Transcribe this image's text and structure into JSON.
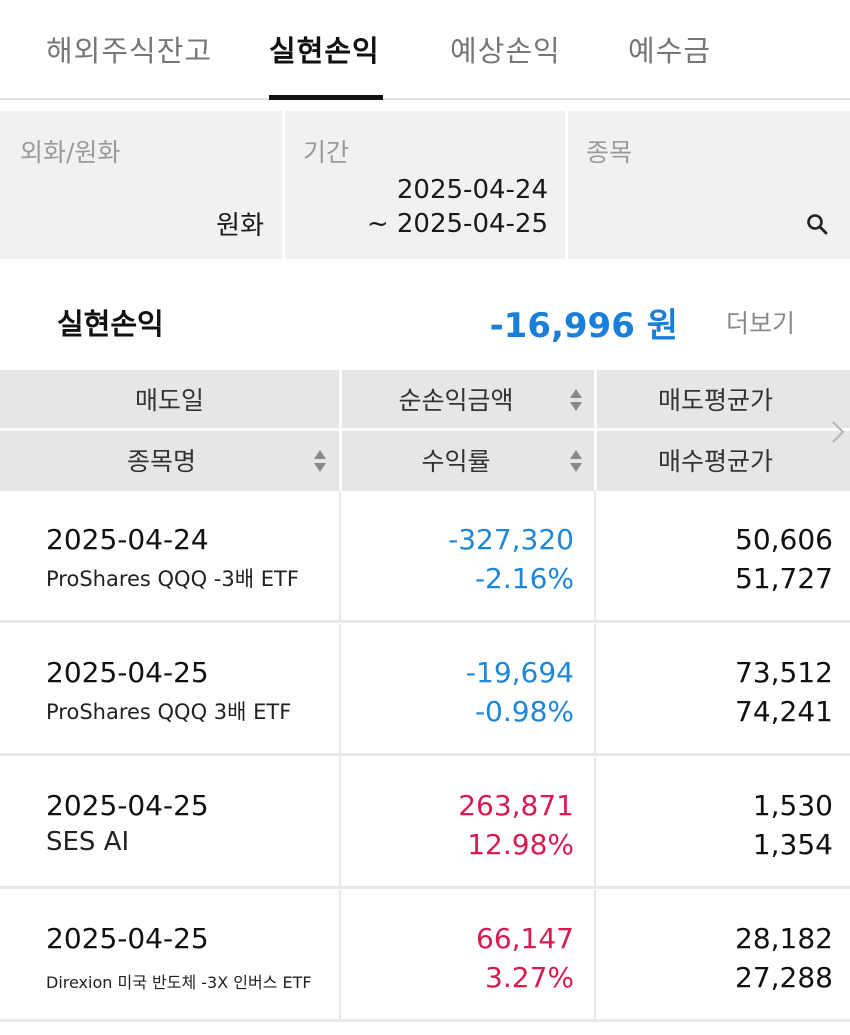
{
  "tabs": [
    {
      "label": "해외주식잔고",
      "active": false
    },
    {
      "label": "실현손익",
      "active": true
    },
    {
      "label": "예상손익",
      "active": false
    },
    {
      "label": "예수금",
      "active": false
    }
  ],
  "filter": {
    "currency_label": "외화/원화",
    "currency_value": "원화",
    "period_label": "기간",
    "period_from": "2025-04-24",
    "period_to": "~ 2025-04-25",
    "stock_label": "종목",
    "search_icon": "search-icon"
  },
  "summary": {
    "label": "실현손익",
    "value": "-16,996 원",
    "more": "더보기",
    "value_color": "#1a7fd9"
  },
  "table": {
    "headers": {
      "sell_date": "매도일",
      "net_profit": "순손익금액",
      "sell_avg": "매도평균가",
      "stock_name": "종목명",
      "return_rate": "수익률",
      "buy_avg": "매수평균가"
    },
    "rows": [
      {
        "date": "2025-04-24",
        "name": "ProShares QQQ -3배 ETF",
        "profit": "-327,320",
        "rate": "-2.16%",
        "sell_avg": "50,606",
        "buy_avg": "51,727",
        "sign": "neg"
      },
      {
        "date": "2025-04-25",
        "name": "ProShares QQQ 3배 ETF",
        "profit": "-19,694",
        "rate": "-0.98%",
        "sell_avg": "73,512",
        "buy_avg": "74,241",
        "sign": "neg"
      },
      {
        "date": "2025-04-25",
        "name": "SES AI",
        "profit": "263,871",
        "rate": "12.98%",
        "sell_avg": "1,530",
        "buy_avg": "1,354",
        "sign": "pos"
      },
      {
        "date": "2025-04-25",
        "name": "Direxion 미국 반도체 -3X 인버스 ETF",
        "profit": "66,147",
        "rate": "3.27%",
        "sell_avg": "28,182",
        "buy_avg": "27,288",
        "sign": "pos"
      }
    ]
  },
  "colors": {
    "negative": "#1f86d8",
    "positive": "#d81b4f"
  }
}
